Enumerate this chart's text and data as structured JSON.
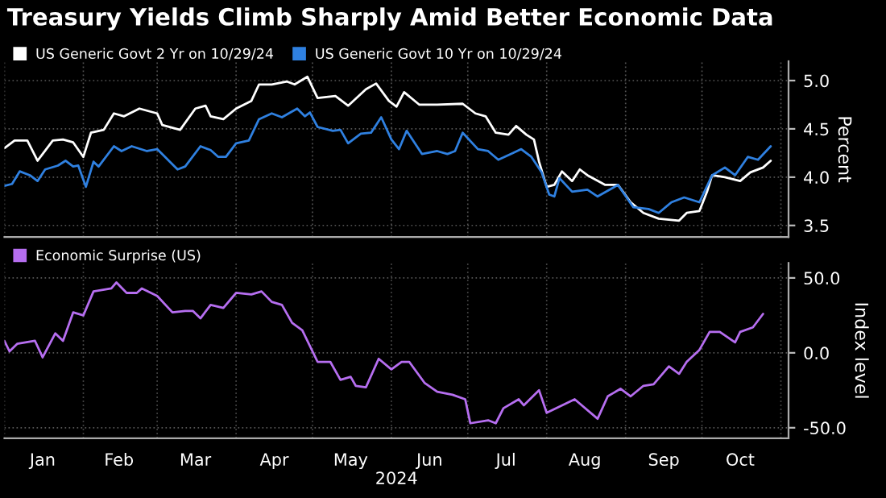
{
  "chart_data": [
    {
      "type": "line",
      "title": "Treasury Yields Climb Sharply Amid Better Economic Data",
      "ylabel": "Percent",
      "legend": "top left",
      "grid": true,
      "tick_labels": "y",
      "xlim": [
        "2024-01-01",
        "2024-11-04"
      ],
      "xticks": [
        {
          "value": "2024-01-01",
          "label": null
        },
        {
          "value": "2024-02-01",
          "label": null
        },
        {
          "value": "2024-03-01",
          "label": null
        },
        {
          "value": "2024-04-01",
          "label": null
        },
        {
          "value": "2024-05-01",
          "label": null
        },
        {
          "value": "2024-06-01",
          "label": null
        },
        {
          "value": "2024-07-01",
          "label": null
        },
        {
          "value": "2024-08-01",
          "label": null
        },
        {
          "value": "2024-09-01",
          "label": null
        },
        {
          "value": "2024-10-01",
          "label": null
        },
        {
          "value": "2024-11-01",
          "label": null
        }
      ],
      "ylim": [
        3.38,
        5.2
      ],
      "yticks": [
        {
          "value": 3.5,
          "label": "3.5"
        },
        {
          "value": 4,
          "label": "4.0"
        },
        {
          "value": 4.5,
          "label": "4.5"
        },
        {
          "value": 5,
          "label": "5.0"
        }
      ],
      "series": [
        {
          "name": "US Generic Govt 2 Yr on 10/29/24",
          "color": "#ffffff",
          "x": [
            "2024-01-01",
            "2024-01-05",
            "2024-01-10",
            "2024-01-14",
            "2024-01-16",
            "2024-01-20",
            "2024-01-24",
            "2024-01-28",
            "2024-02-01",
            "2024-02-04",
            "2024-02-09",
            "2024-02-13",
            "2024-02-17",
            "2024-02-23",
            "2024-03-01",
            "2024-03-03",
            "2024-03-10",
            "2024-03-16",
            "2024-03-20",
            "2024-03-22",
            "2024-03-27",
            "2024-04-01",
            "2024-04-07",
            "2024-04-10",
            "2024-04-15",
            "2024-04-21",
            "2024-04-24",
            "2024-04-29",
            "2024-05-03",
            "2024-05-10",
            "2024-05-15",
            "2024-05-22",
            "2024-05-26",
            "2024-05-31",
            "2024-06-03",
            "2024-06-06",
            "2024-06-12",
            "2024-06-19",
            "2024-06-29",
            "2024-07-04",
            "2024-07-08",
            "2024-07-12",
            "2024-07-17",
            "2024-07-20",
            "2024-07-24",
            "2024-07-27",
            "2024-07-29",
            "2024-08-01",
            "2024-08-04",
            "2024-08-07",
            "2024-08-11",
            "2024-08-14",
            "2024-08-17",
            "2024-08-24",
            "2024-08-29",
            "2024-09-03",
            "2024-09-08",
            "2024-09-14",
            "2024-09-22",
            "2024-09-25",
            "2024-09-30",
            "2024-10-03",
            "2024-10-05",
            "2024-10-10",
            "2024-10-16",
            "2024-10-20",
            "2024-10-25",
            "2024-10-28"
          ],
          "values": [
            4.3,
            4.38,
            4.38,
            4.17,
            4.24,
            4.38,
            4.39,
            4.36,
            4.21,
            4.46,
            4.49,
            4.66,
            4.63,
            4.71,
            4.66,
            4.54,
            4.49,
            4.71,
            4.74,
            4.63,
            4.6,
            4.71,
            4.79,
            4.96,
            4.96,
            4.99,
            4.96,
            5.04,
            4.82,
            4.84,
            4.74,
            4.91,
            4.97,
            4.79,
            4.73,
            4.88,
            4.75,
            4.75,
            4.76,
            4.66,
            4.63,
            4.46,
            4.44,
            4.53,
            4.44,
            4.39,
            4.16,
            3.9,
            3.92,
            4.06,
            3.96,
            4.08,
            4.02,
            3.92,
            3.92,
            3.74,
            3.63,
            3.57,
            3.55,
            3.63,
            3.65,
            3.85,
            4.02,
            4.0,
            3.96,
            4.05,
            4.1,
            4.17
          ]
        },
        {
          "name": "US Generic Govt 10 Yr on 10/29/24",
          "color": "#2f80e0",
          "x": [
            "2024-01-01",
            "2024-01-04",
            "2024-01-07",
            "2024-01-11",
            "2024-01-14",
            "2024-01-17",
            "2024-01-22",
            "2024-01-25",
            "2024-01-28",
            "2024-01-30",
            "2024-02-02",
            "2024-02-05",
            "2024-02-07",
            "2024-02-13",
            "2024-02-16",
            "2024-02-20",
            "2024-02-26",
            "2024-03-01",
            "2024-03-09",
            "2024-03-12",
            "2024-03-18",
            "2024-03-22",
            "2024-03-25",
            "2024-03-28",
            "2024-04-01",
            "2024-04-06",
            "2024-04-10",
            "2024-04-15",
            "2024-04-19",
            "2024-04-25",
            "2024-04-28",
            "2024-04-30",
            "2024-05-03",
            "2024-05-09",
            "2024-05-12",
            "2024-05-15",
            "2024-05-20",
            "2024-05-24",
            "2024-05-28",
            "2024-06-01",
            "2024-06-04",
            "2024-06-07",
            "2024-06-13",
            "2024-06-19",
            "2024-06-23",
            "2024-06-26",
            "2024-06-29",
            "2024-07-05",
            "2024-07-09",
            "2024-07-13",
            "2024-07-18",
            "2024-07-22",
            "2024-07-26",
            "2024-07-30",
            "2024-08-02",
            "2024-08-04",
            "2024-08-06",
            "2024-08-11",
            "2024-08-17",
            "2024-08-21",
            "2024-08-29",
            "2024-09-04",
            "2024-09-10",
            "2024-09-14",
            "2024-09-19",
            "2024-09-24",
            "2024-09-30",
            "2024-10-05",
            "2024-10-10",
            "2024-10-14",
            "2024-10-19",
            "2024-10-23",
            "2024-10-28"
          ],
          "values": [
            3.91,
            3.93,
            4.06,
            4.02,
            3.96,
            4.08,
            4.12,
            4.17,
            4.11,
            4.12,
            3.9,
            4.16,
            4.11,
            4.32,
            4.27,
            4.32,
            4.27,
            4.29,
            4.08,
            4.11,
            4.32,
            4.28,
            4.21,
            4.21,
            4.35,
            4.38,
            4.6,
            4.66,
            4.62,
            4.71,
            4.63,
            4.67,
            4.52,
            4.48,
            4.49,
            4.35,
            4.45,
            4.46,
            4.62,
            4.39,
            4.29,
            4.48,
            4.24,
            4.27,
            4.24,
            4.27,
            4.46,
            4.29,
            4.27,
            4.18,
            4.24,
            4.29,
            4.21,
            4.05,
            3.82,
            3.8,
            3.99,
            3.85,
            3.87,
            3.8,
            3.92,
            3.69,
            3.67,
            3.63,
            3.74,
            3.79,
            3.74,
            4.02,
            4.1,
            4.02,
            4.21,
            4.18,
            4.32
          ]
        }
      ]
    },
    {
      "type": "line",
      "ylabel": "Index level",
      "xlabel": "2024",
      "legend": "top left",
      "grid": true,
      "xlim": [
        "2024-01-01",
        "2024-11-04"
      ],
      "xticks": [
        {
          "value": "2024-01-01",
          "label": null
        },
        {
          "value": "2024-01-16",
          "label": "Jan"
        },
        {
          "value": "2024-02-01",
          "label": null
        },
        {
          "value": "2024-02-15",
          "label": "Feb"
        },
        {
          "value": "2024-03-01",
          "label": null
        },
        {
          "value": "2024-03-16",
          "label": "Mar"
        },
        {
          "value": "2024-04-01",
          "label": null
        },
        {
          "value": "2024-04-16",
          "label": "Apr"
        },
        {
          "value": "2024-05-01",
          "label": null
        },
        {
          "value": "2024-05-16",
          "label": "May"
        },
        {
          "value": "2024-06-01",
          "label": null
        },
        {
          "value": "2024-06-16",
          "label": "Jun"
        },
        {
          "value": "2024-07-01",
          "label": null
        },
        {
          "value": "2024-07-16",
          "label": "Jul"
        },
        {
          "value": "2024-08-01",
          "label": null
        },
        {
          "value": "2024-08-16",
          "label": "Aug"
        },
        {
          "value": "2024-09-01",
          "label": null
        },
        {
          "value": "2024-09-16",
          "label": "Sep"
        },
        {
          "value": "2024-10-01",
          "label": null
        },
        {
          "value": "2024-10-16",
          "label": "Oct"
        },
        {
          "value": "2024-11-01",
          "label": null
        }
      ],
      "ylim": [
        -57,
        60
      ],
      "yticks": [
        {
          "value": -50,
          "label": "-50.0"
        },
        {
          "value": 0,
          "label": "0.0"
        },
        {
          "value": 50,
          "label": "50.0"
        }
      ],
      "series": [
        {
          "name": "Economic Surprise (US)",
          "color": "#b66ef0",
          "x": [
            "2024-01-01",
            "2024-01-03",
            "2024-01-06",
            "2024-01-13",
            "2024-01-16",
            "2024-01-21",
            "2024-01-24",
            "2024-01-28",
            "2024-02-01",
            "2024-02-05",
            "2024-02-12",
            "2024-02-14",
            "2024-02-18",
            "2024-02-22",
            "2024-02-24",
            "2024-03-01",
            "2024-03-07",
            "2024-03-12",
            "2024-03-15",
            "2024-03-18",
            "2024-03-22",
            "2024-03-27",
            "2024-04-01",
            "2024-04-07",
            "2024-04-11",
            "2024-04-15",
            "2024-04-19",
            "2024-04-23",
            "2024-04-27",
            "2024-05-03",
            "2024-05-08",
            "2024-05-12",
            "2024-05-16",
            "2024-05-18",
            "2024-05-22",
            "2024-05-27",
            "2024-06-01",
            "2024-06-05",
            "2024-06-08",
            "2024-06-14",
            "2024-06-19",
            "2024-06-25",
            "2024-06-30",
            "2024-07-02",
            "2024-07-09",
            "2024-07-12",
            "2024-07-15",
            "2024-07-21",
            "2024-07-23",
            "2024-07-29",
            "2024-08-01",
            "2024-08-12",
            "2024-08-21",
            "2024-08-25",
            "2024-08-30",
            "2024-09-03",
            "2024-09-08",
            "2024-09-12",
            "2024-09-18",
            "2024-09-22",
            "2024-09-25",
            "2024-09-30",
            "2024-10-04",
            "2024-10-08",
            "2024-10-14",
            "2024-10-16",
            "2024-10-21",
            "2024-10-25"
          ],
          "values": [
            8,
            1,
            6,
            8,
            -3,
            13,
            8,
            27,
            25,
            41,
            43,
            47,
            40,
            40,
            43,
            38,
            27,
            28,
            28,
            23,
            32,
            30,
            40,
            39,
            41,
            34,
            32,
            20,
            15,
            -6,
            -6,
            -18,
            -16,
            -22,
            -23,
            -4,
            -11,
            -6,
            -6,
            -20,
            -26,
            -28,
            -31,
            -47,
            -45,
            -47,
            -37,
            -31,
            -35,
            -25,
            -40,
            -31,
            -44,
            -29,
            -24,
            -29,
            -22,
            -21,
            -9,
            -14,
            -6,
            2,
            14,
            14,
            7,
            14,
            17,
            26
          ]
        }
      ]
    }
  ]
}
